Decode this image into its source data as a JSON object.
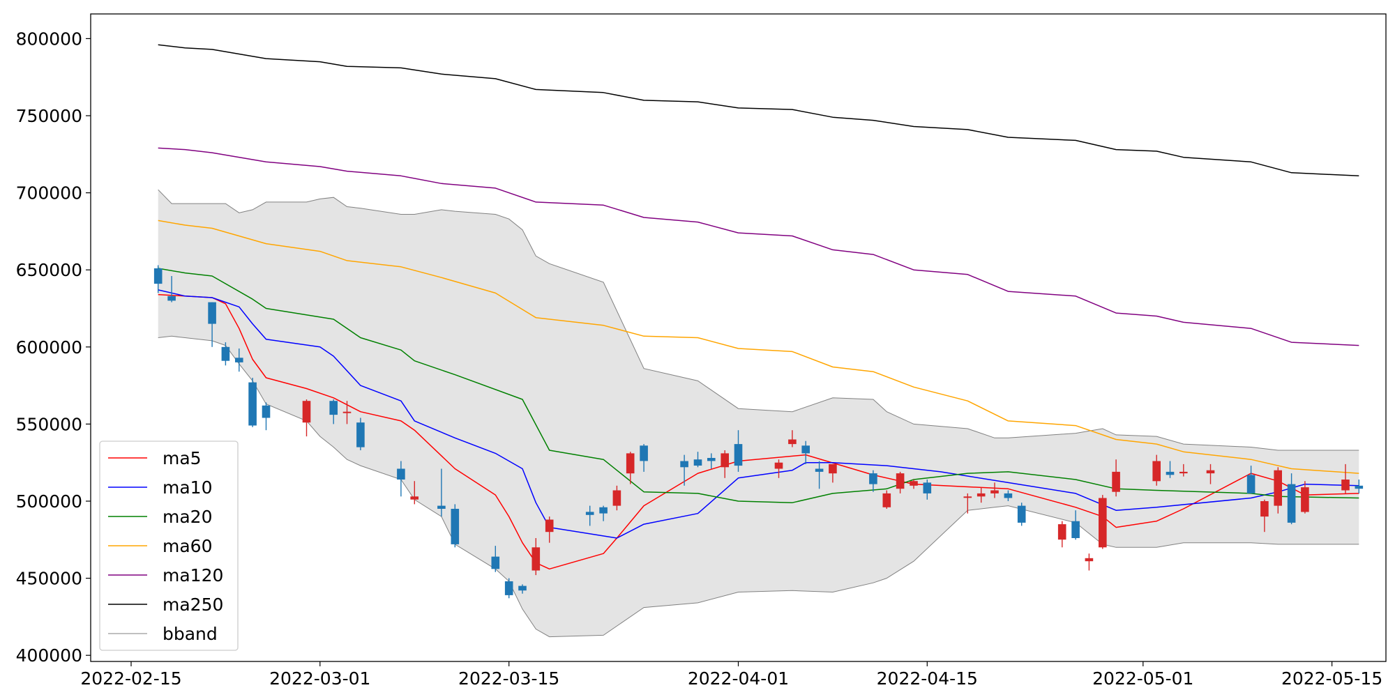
{
  "chart_data": {
    "type": "candlestick",
    "xlim": [
      "2022-02-12",
      "2022-05-19"
    ],
    "ylim": [
      396000,
      816000
    ],
    "x_ticks": [
      "2022-02-15",
      "2022-03-01",
      "2022-03-15",
      "2022-04-01",
      "2022-04-15",
      "2022-05-01",
      "2022-05-15"
    ],
    "y_ticks": [
      400000,
      450000,
      500000,
      550000,
      600000,
      650000,
      700000,
      750000,
      800000
    ],
    "grid": false,
    "legend_position": "lower-left",
    "up_color": "#d62728",
    "down_color": "#1f77b4",
    "dates": [
      "2022-02-17",
      "2022-02-18",
      "2022-02-21",
      "2022-02-22",
      "2022-02-23",
      "2022-02-24",
      "2022-02-25",
      "2022-02-28",
      "2022-03-02",
      "2022-03-03",
      "2022-03-04",
      "2022-03-07",
      "2022-03-08",
      "2022-03-10",
      "2022-03-11",
      "2022-03-14",
      "2022-03-15",
      "2022-03-16",
      "2022-03-17",
      "2022-03-18",
      "2022-03-21",
      "2022-03-22",
      "2022-03-23",
      "2022-03-24",
      "2022-03-25",
      "2022-03-28",
      "2022-03-29",
      "2022-03-30",
      "2022-03-31",
      "2022-04-01",
      "2022-04-04",
      "2022-04-05",
      "2022-04-06",
      "2022-04-07",
      "2022-04-08",
      "2022-04-11",
      "2022-04-12",
      "2022-04-13",
      "2022-04-14",
      "2022-04-15",
      "2022-04-18",
      "2022-04-19",
      "2022-04-20",
      "2022-04-21",
      "2022-04-22",
      "2022-04-25",
      "2022-04-26",
      "2022-04-27",
      "2022-04-28",
      "2022-04-29",
      "2022-05-02",
      "2022-05-03",
      "2022-05-04",
      "2022-05-06",
      "2022-05-09",
      "2022-05-10",
      "2022-05-11",
      "2022-05-12",
      "2022-05-13",
      "2022-05-16",
      "2022-05-17"
    ],
    "ohlc": [
      [
        651000,
        653000,
        635000,
        641000
      ],
      [
        633000,
        646000,
        629000,
        630000
      ],
      [
        629000,
        629000,
        600000,
        615000
      ],
      [
        600000,
        603000,
        588000,
        591000
      ],
      [
        593000,
        599000,
        584000,
        590000
      ],
      [
        577000,
        580000,
        548000,
        549000
      ],
      [
        562000,
        564000,
        546000,
        554000
      ],
      [
        551000,
        566000,
        542000,
        565000
      ],
      [
        565000,
        566000,
        550000,
        556000
      ],
      [
        558000,
        565000,
        550000,
        558000
      ],
      [
        551000,
        554000,
        533000,
        535000
      ],
      [
        521000,
        526000,
        503000,
        514000
      ],
      [
        501000,
        513000,
        498000,
        503000
      ],
      [
        497000,
        521000,
        490000,
        495000
      ],
      [
        495000,
        498000,
        470000,
        472000
      ],
      [
        464000,
        471000,
        454000,
        456000
      ],
      [
        448000,
        450000,
        437000,
        439000
      ],
      [
        445000,
        446000,
        440000,
        442000
      ],
      [
        455000,
        476000,
        452000,
        470000
      ],
      [
        480000,
        490000,
        473000,
        488000
      ],
      [
        493000,
        497000,
        484000,
        491000
      ],
      [
        496000,
        497000,
        487000,
        492000
      ],
      [
        497000,
        510000,
        494000,
        507000
      ],
      [
        518000,
        532000,
        511000,
        531000
      ],
      [
        536000,
        537000,
        519000,
        526000
      ],
      [
        526000,
        530000,
        510000,
        522000
      ],
      [
        527000,
        532000,
        522000,
        523000
      ],
      [
        528000,
        531000,
        521000,
        526000
      ],
      [
        522000,
        533000,
        515000,
        531000
      ],
      [
        537000,
        546000,
        519000,
        523000
      ],
      [
        521000,
        527000,
        515000,
        525000
      ],
      [
        537000,
        546000,
        535000,
        540000
      ],
      [
        536000,
        539000,
        524000,
        531000
      ],
      [
        521000,
        526000,
        508000,
        519000
      ],
      [
        518000,
        524000,
        512000,
        524000
      ],
      [
        518000,
        520000,
        506000,
        511000
      ],
      [
        496000,
        507000,
        495000,
        505000
      ],
      [
        508000,
        519000,
        505000,
        518000
      ],
      [
        510000,
        514000,
        508000,
        513000
      ],
      [
        512000,
        514000,
        501000,
        505000
      ],
      [
        503000,
        505000,
        492000,
        503000
      ],
      [
        503000,
        509000,
        499000,
        505000
      ],
      [
        505000,
        512000,
        502000,
        507000
      ],
      [
        505000,
        507000,
        500000,
        502000
      ],
      [
        497000,
        499000,
        484000,
        486000
      ],
      [
        475000,
        487000,
        470000,
        485000
      ],
      [
        487000,
        494000,
        475000,
        476000
      ],
      [
        461000,
        466000,
        455000,
        463000
      ],
      [
        470000,
        504000,
        469000,
        502000
      ],
      [
        506000,
        527000,
        503000,
        519000
      ],
      [
        513000,
        530000,
        510000,
        526000
      ],
      [
        519000,
        526000,
        515000,
        517000
      ],
      [
        518000,
        524000,
        516000,
        519000
      ],
      [
        518000,
        524000,
        511000,
        520000
      ],
      [
        517000,
        523000,
        505000,
        505000
      ],
      [
        490000,
        501000,
        480000,
        500000
      ],
      [
        497000,
        522000,
        492000,
        520000
      ],
      [
        511000,
        518000,
        485000,
        486000
      ],
      [
        493000,
        513000,
        492000,
        509000
      ],
      [
        507000,
        524000,
        505000,
        514000
      ],
      [
        510000,
        514000,
        505000,
        508000
      ]
    ],
    "series": [
      {
        "name": "ma5",
        "color": "#ff0000",
        "x": [
          "2022-02-17",
          "2022-02-19",
          "2022-02-21",
          "2022-02-22",
          "2022-02-23",
          "2022-02-24",
          "2022-02-25",
          "2022-02-28",
          "2022-03-02",
          "2022-03-04",
          "2022-03-07",
          "2022-03-08",
          "2022-03-11",
          "2022-03-14",
          "2022-03-15",
          "2022-03-16",
          "2022-03-17",
          "2022-03-18",
          "2022-03-22",
          "2022-03-23",
          "2022-03-25",
          "2022-03-29",
          "2022-04-01",
          "2022-04-06",
          "2022-04-11",
          "2022-04-14",
          "2022-04-21",
          "2022-04-26",
          "2022-04-28",
          "2022-04-29",
          "2022-05-02",
          "2022-05-04",
          "2022-05-09",
          "2022-05-11",
          "2022-05-13",
          "2022-05-17"
        ],
        "values": [
          634000,
          633000,
          632000,
          628000,
          612000,
          592000,
          580000,
          573000,
          567000,
          558000,
          552000,
          546000,
          521000,
          504000,
          490000,
          473000,
          460000,
          456000,
          466000,
          476000,
          497000,
          518000,
          526000,
          530000,
          517000,
          511000,
          508000,
          496000,
          490000,
          483000,
          487000,
          495000,
          518000,
          513000,
          504000,
          505000
        ]
      },
      {
        "name": "ma10",
        "color": "#0000ff",
        "x": [
          "2022-02-17",
          "2022-02-19",
          "2022-02-21",
          "2022-02-23",
          "2022-02-24",
          "2022-02-25",
          "2022-03-01",
          "2022-03-02",
          "2022-03-04",
          "2022-03-07",
          "2022-03-08",
          "2022-03-11",
          "2022-03-14",
          "2022-03-16",
          "2022-03-17",
          "2022-03-18",
          "2022-03-23",
          "2022-03-25",
          "2022-03-29",
          "2022-04-01",
          "2022-04-05",
          "2022-04-06",
          "2022-04-08",
          "2022-04-12",
          "2022-04-16",
          "2022-04-21",
          "2022-04-26",
          "2022-04-29",
          "2022-05-02",
          "2022-05-09",
          "2022-05-11",
          "2022-05-13",
          "2022-05-17"
        ],
        "values": [
          637000,
          633000,
          632000,
          626000,
          615000,
          605000,
          600000,
          594000,
          575000,
          565000,
          552000,
          541000,
          531000,
          521000,
          499000,
          483000,
          476000,
          485000,
          492000,
          515000,
          520000,
          525000,
          525000,
          523000,
          519000,
          512000,
          505000,
          494000,
          496000,
          502000,
          506000,
          511000,
          510000
        ]
      },
      {
        "name": "ma20",
        "color": "#008000",
        "x": [
          "2022-02-17",
          "2022-02-19",
          "2022-02-21",
          "2022-02-24",
          "2022-02-25",
          "2022-03-02",
          "2022-03-04",
          "2022-03-07",
          "2022-03-08",
          "2022-03-11",
          "2022-03-16",
          "2022-03-18",
          "2022-03-22",
          "2022-03-25",
          "2022-03-29",
          "2022-04-01",
          "2022-04-05",
          "2022-04-08",
          "2022-04-12",
          "2022-04-14",
          "2022-04-18",
          "2022-04-21",
          "2022-04-26",
          "2022-04-29",
          "2022-05-02",
          "2022-05-09",
          "2022-05-11",
          "2022-05-17"
        ],
        "values": [
          651000,
          648000,
          646000,
          631000,
          625000,
          618000,
          606000,
          598000,
          591000,
          582000,
          566000,
          533000,
          527000,
          506000,
          505000,
          500000,
          499000,
          505000,
          508000,
          514000,
          518000,
          519000,
          514000,
          508000,
          507000,
          505000,
          503000,
          502000
        ]
      },
      {
        "name": "ma60",
        "color": "#ffa500",
        "x": [
          "2022-02-17",
          "2022-02-19",
          "2022-02-21",
          "2022-02-25",
          "2022-03-01",
          "2022-03-03",
          "2022-03-07",
          "2022-03-10",
          "2022-03-14",
          "2022-03-17",
          "2022-03-22",
          "2022-03-25",
          "2022-03-29",
          "2022-04-01",
          "2022-04-05",
          "2022-04-08",
          "2022-04-11",
          "2022-04-14",
          "2022-04-18",
          "2022-04-21",
          "2022-04-26",
          "2022-04-29",
          "2022-05-02",
          "2022-05-04",
          "2022-05-09",
          "2022-05-12",
          "2022-05-17"
        ],
        "values": [
          682000,
          679000,
          677000,
          667000,
          662000,
          656000,
          652000,
          645000,
          635000,
          619000,
          614000,
          607000,
          606000,
          599000,
          597000,
          587000,
          584000,
          574000,
          565000,
          552000,
          549000,
          540000,
          537000,
          532000,
          527000,
          521000,
          518000
        ]
      },
      {
        "name": "ma120",
        "color": "#800080",
        "x": [
          "2022-02-17",
          "2022-02-19",
          "2022-02-21",
          "2022-02-25",
          "2022-03-01",
          "2022-03-03",
          "2022-03-07",
          "2022-03-10",
          "2022-03-14",
          "2022-03-17",
          "2022-03-22",
          "2022-03-25",
          "2022-03-29",
          "2022-04-01",
          "2022-04-05",
          "2022-04-08",
          "2022-04-11",
          "2022-04-14",
          "2022-04-18",
          "2022-04-21",
          "2022-04-26",
          "2022-04-29",
          "2022-05-02",
          "2022-05-04",
          "2022-05-09",
          "2022-05-12",
          "2022-05-17"
        ],
        "values": [
          729000,
          728000,
          726000,
          720000,
          717000,
          714000,
          711000,
          706000,
          703000,
          694000,
          692000,
          684000,
          681000,
          674000,
          672000,
          663000,
          660000,
          650000,
          647000,
          636000,
          633000,
          622000,
          620000,
          616000,
          612000,
          603000,
          601000
        ]
      },
      {
        "name": "ma250",
        "color": "#000000",
        "x": [
          "2022-02-17",
          "2022-02-19",
          "2022-02-21",
          "2022-02-25",
          "2022-03-01",
          "2022-03-03",
          "2022-03-07",
          "2022-03-10",
          "2022-03-14",
          "2022-03-17",
          "2022-03-22",
          "2022-03-25",
          "2022-03-29",
          "2022-04-01",
          "2022-04-05",
          "2022-04-08",
          "2022-04-11",
          "2022-04-14",
          "2022-04-18",
          "2022-04-21",
          "2022-04-26",
          "2022-04-29",
          "2022-05-02",
          "2022-05-04",
          "2022-05-09",
          "2022-05-12",
          "2022-05-17"
        ],
        "values": [
          796000,
          794000,
          793000,
          787000,
          785000,
          782000,
          781000,
          777000,
          774000,
          767000,
          765000,
          760000,
          759000,
          755000,
          754000,
          749000,
          747000,
          743000,
          741000,
          736000,
          734000,
          728000,
          727000,
          723000,
          720000,
          713000,
          711000
        ]
      }
    ],
    "bband": {
      "name": "bband",
      "color": "#808080",
      "fill": "#e4e4e4",
      "x": [
        "2022-02-17",
        "2022-02-18",
        "2022-02-21",
        "2022-02-22",
        "2022-02-23",
        "2022-02-24",
        "2022-02-25",
        "2022-02-28",
        "2022-03-01",
        "2022-03-02",
        "2022-03-03",
        "2022-03-04",
        "2022-03-07",
        "2022-03-08",
        "2022-03-10",
        "2022-03-11",
        "2022-03-14",
        "2022-03-15",
        "2022-03-16",
        "2022-03-17",
        "2022-03-18",
        "2022-03-22",
        "2022-03-25",
        "2022-03-29",
        "2022-04-01",
        "2022-04-05",
        "2022-04-08",
        "2022-04-11",
        "2022-04-12",
        "2022-04-14",
        "2022-04-18",
        "2022-04-20",
        "2022-04-21",
        "2022-04-26",
        "2022-04-28",
        "2022-04-29",
        "2022-05-02",
        "2022-05-04",
        "2022-05-09",
        "2022-05-11",
        "2022-05-17"
      ],
      "upper": [
        702000,
        693000,
        693000,
        693000,
        687000,
        689000,
        694000,
        694000,
        696000,
        697000,
        691000,
        690000,
        686000,
        686000,
        689000,
        688000,
        686000,
        683000,
        676000,
        659000,
        654000,
        642000,
        586000,
        578000,
        560000,
        558000,
        567000,
        566000,
        558000,
        550000,
        547000,
        541000,
        541000,
        544000,
        547000,
        543000,
        542000,
        537000,
        535000,
        533000,
        533000
      ],
      "lower": [
        606000,
        607000,
        604000,
        601000,
        589000,
        578000,
        563000,
        552000,
        542000,
        535000,
        527000,
        523000,
        514000,
        501000,
        490000,
        472000,
        456000,
        448000,
        430000,
        417000,
        412000,
        413000,
        431000,
        434000,
        441000,
        442000,
        441000,
        447000,
        450000,
        461000,
        494000,
        496000,
        497000,
        486000,
        472000,
        470000,
        470000,
        473000,
        473000,
        472000,
        472000
      ]
    },
    "legend": [
      "ma5",
      "ma10",
      "ma20",
      "ma60",
      "ma120",
      "ma250",
      "bband"
    ]
  }
}
